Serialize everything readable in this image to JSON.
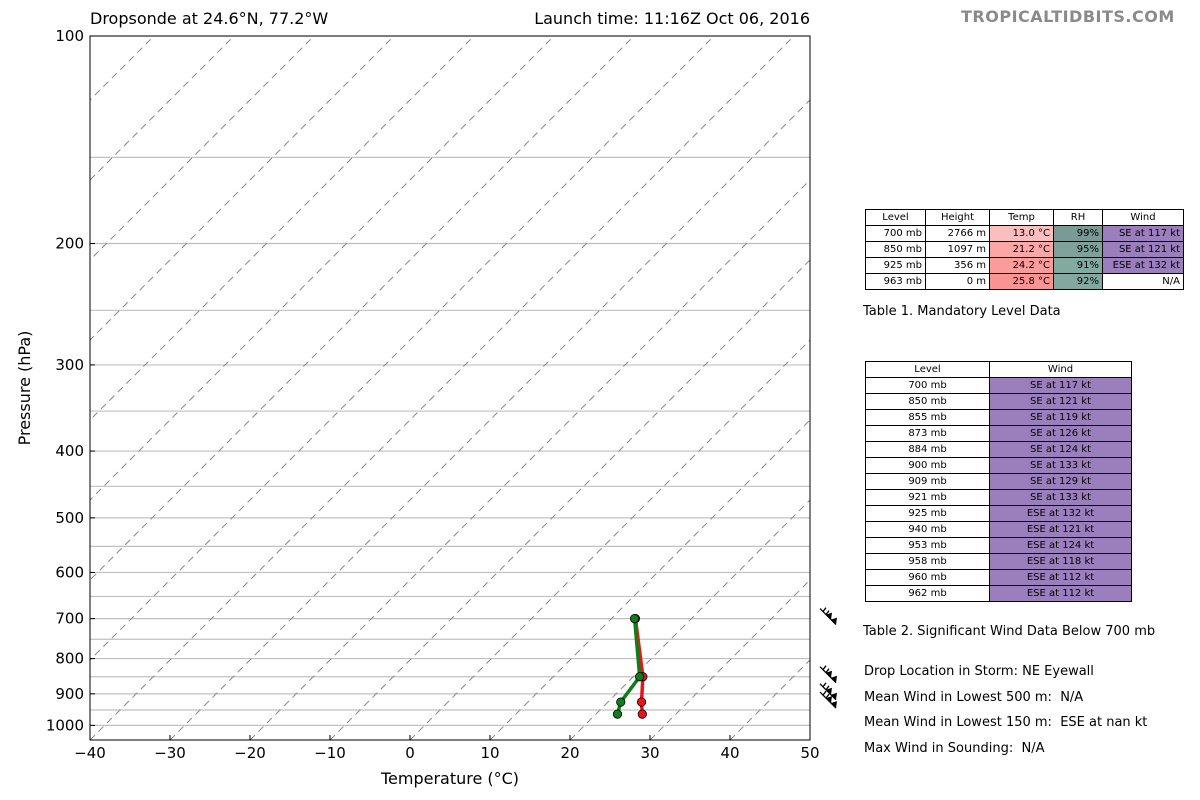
{
  "header": {
    "title": "Dropsonde at 24.6°N, 77.2°W",
    "launch": "Launch time: 11:16Z Oct 06, 2016",
    "brand": "TROPICALTIDBITS.COM"
  },
  "chart_data": {
    "type": "line",
    "xlabel": "Temperature (°C)",
    "ylabel": "Pressure (hPa)",
    "xlim": [
      -40,
      50
    ],
    "ylim": [
      1050,
      100
    ],
    "y_scale": "log",
    "x_ticks": [
      "−40",
      "−30",
      "−20",
      "−10",
      "0",
      "10",
      "20",
      "30",
      "40",
      "50"
    ],
    "x_tick_values": [
      -40,
      -30,
      -20,
      -10,
      0,
      10,
      20,
      30,
      40,
      50
    ],
    "y_ticks": [
      "100",
      "200",
      "300",
      "400",
      "500",
      "600",
      "700",
      "800",
      "900",
      "1000"
    ],
    "y_tick_values": [
      100,
      200,
      300,
      400,
      500,
      600,
      700,
      800,
      900,
      1000
    ],
    "isobars": [
      100,
      150,
      200,
      250,
      300,
      350,
      400,
      450,
      500,
      550,
      600,
      650,
      700,
      750,
      800,
      850,
      900,
      950,
      1000
    ],
    "skewed_isotherms": "dashed gray",
    "series": [
      {
        "color": "#e8161b",
        "points": [
          [
            13.0,
            700
          ],
          [
            21.2,
            850
          ],
          [
            24.2,
            925
          ],
          [
            25.8,
            963
          ]
        ]
      },
      {
        "color": "#0e7d1a",
        "points": [
          [
            12.9,
            700
          ],
          [
            20.8,
            850
          ],
          [
            21.6,
            925
          ],
          [
            22.7,
            963
          ]
        ]
      }
    ],
    "wind_barb_levels": [
      700,
      850,
      900,
      925
    ]
  },
  "table1": {
    "headers": [
      "Level",
      "Height",
      "Temp",
      "RH",
      "Wind"
    ],
    "rows": [
      {
        "level": "700 mb",
        "height": "2766 m",
        "temp": "13.0 °C",
        "rh": "99%",
        "wind": "SE at 117 kt",
        "temp_color": "#fcbfbf",
        "rh_color": "#7a9a96",
        "wind_color": "#9b7fbd"
      },
      {
        "level": "850 mb",
        "height": "1097 m",
        "temp": "21.2 °C",
        "rh": "95%",
        "wind": "SE at 121 kt",
        "temp_color": "#fba7a7",
        "rh_color": "#7ea29b",
        "wind_color": "#9b7fbd"
      },
      {
        "level": "925 mb",
        "height": "356 m",
        "temp": "24.2 °C",
        "rh": "91%",
        "wind": "ESE at 132 kt",
        "temp_color": "#fb9b9b",
        "rh_color": "#83aaa1",
        "wind_color": "#9b7fbd"
      },
      {
        "level": "963 mb",
        "height": "0 m",
        "temp": "25.8 °C",
        "rh": "92%",
        "wind": "N/A",
        "temp_color": "#fa9494",
        "rh_color": "#82a8a0",
        "wind_color": "#ffffff"
      }
    ],
    "caption": "Table 1. Mandatory Level Data"
  },
  "table2": {
    "headers": [
      "Level",
      "Wind"
    ],
    "rows": [
      {
        "level": "700 mb",
        "wind": "SE at 117 kt"
      },
      {
        "level": "850 mb",
        "wind": "SE at 121 kt"
      },
      {
        "level": "855 mb",
        "wind": "SE at 119 kt"
      },
      {
        "level": "873 mb",
        "wind": "SE at 126 kt"
      },
      {
        "level": "884 mb",
        "wind": "SE at 124 kt"
      },
      {
        "level": "900 mb",
        "wind": "SE at 133 kt"
      },
      {
        "level": "909 mb",
        "wind": "SE at 129 kt"
      },
      {
        "level": "921 mb",
        "wind": "SE at 133 kt"
      },
      {
        "level": "925 mb",
        "wind": "ESE at 132 kt"
      },
      {
        "level": "940 mb",
        "wind": "ESE at 121 kt"
      },
      {
        "level": "953 mb",
        "wind": "ESE at 124 kt"
      },
      {
        "level": "958 mb",
        "wind": "ESE at 118 kt"
      },
      {
        "level": "960 mb",
        "wind": "ESE at 112 kt"
      },
      {
        "level": "962 mb",
        "wind": "ESE at 112 kt"
      }
    ],
    "wind_color": "#9b7fbd",
    "caption": "Table 2. Significant Wind Data Below 700 mb"
  },
  "info": {
    "drop_location": "Drop Location in Storm: NE Eyewall",
    "mean_500": "Mean Wind in Lowest 500 m:  N/A",
    "mean_150": "Mean Wind in Lowest 150 m:  ESE at nan kt",
    "max_wind": "Max Wind in Sounding:  N/A"
  },
  "colors": {
    "isobar": "#c0c0c0",
    "isotherm": "#888888"
  }
}
